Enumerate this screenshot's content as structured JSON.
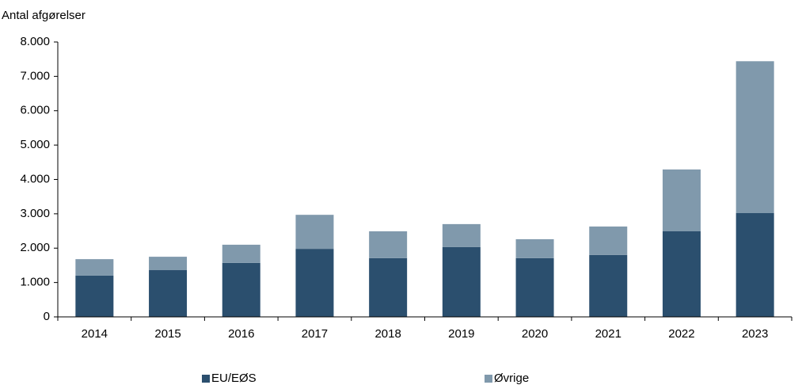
{
  "chart_data": {
    "type": "stacked_bar",
    "y_axis_label": "Antal afgørelser",
    "categories": [
      "2014",
      "2015",
      "2016",
      "2017",
      "2018",
      "2019",
      "2020",
      "2021",
      "2022",
      "2023"
    ],
    "series": [
      {
        "name": "EU/EØS",
        "color": "#2b4f6e",
        "values": [
          1200,
          1360,
          1570,
          1980,
          1710,
          2030,
          1710,
          1800,
          2490,
          3020
        ]
      },
      {
        "name": "Øvrige",
        "color": "#8099ac",
        "values": [
          480,
          390,
          530,
          990,
          780,
          670,
          550,
          830,
          1800,
          4420
        ]
      }
    ],
    "ylim": [
      0,
      8000
    ],
    "yticks": [
      0,
      {
        "value": 1000,
        "label": "1.000"
      },
      {
        "value": 2000,
        "label": "2.000"
      },
      {
        "value": 3000,
        "label": "3.000"
      },
      {
        "value": 4000,
        "label": "4.000"
      },
      {
        "value": 5000,
        "label": "5.000"
      },
      {
        "value": 6000,
        "label": "6.000"
      },
      {
        "value": 7000,
        "label": "7.000"
      },
      {
        "value": 8000,
        "label": "8.000"
      }
    ],
    "legend": "bottom"
  }
}
